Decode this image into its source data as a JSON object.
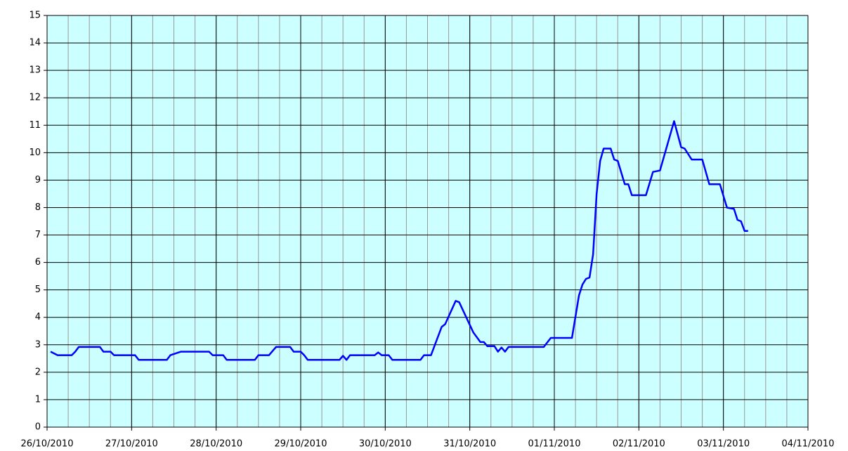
{
  "chart_data": {
    "type": "line",
    "x": [
      "2010-10-26T01:00",
      "2010-10-26T03:00",
      "2010-10-26T06:00",
      "2010-10-26T07:00",
      "2010-10-26T08:00",
      "2010-10-26T09:00",
      "2010-10-26T15:00",
      "2010-10-26T16:00",
      "2010-10-26T18:00",
      "2010-10-26T19:00",
      "2010-10-27T01:00",
      "2010-10-27T02:00",
      "2010-10-27T10:00",
      "2010-10-27T11:00",
      "2010-10-27T14:00",
      "2010-10-27T22:00",
      "2010-10-27T23:00",
      "2010-10-28T02:00",
      "2010-10-28T03:00",
      "2010-10-28T11:00",
      "2010-10-28T12:00",
      "2010-10-28T15:00",
      "2010-10-28T17:00",
      "2010-10-28T21:00",
      "2010-10-28T22:00",
      "2010-10-29T00:00",
      "2010-10-29T01:00",
      "2010-10-29T02:00",
      "2010-10-29T11:00",
      "2010-10-29T12:00",
      "2010-10-29T13:00",
      "2010-10-29T14:00",
      "2010-10-29T21:00",
      "2010-10-29T22:00",
      "2010-10-29T23:00",
      "2010-10-30T01:00",
      "2010-10-30T02:00",
      "2010-10-30T10:00",
      "2010-10-30T11:00",
      "2010-10-30T13:00",
      "2010-10-30T16:00",
      "2010-10-30T17:00",
      "2010-10-30T20:00",
      "2010-10-30T21:00",
      "2010-10-31T01:00",
      "2010-10-31T03:00",
      "2010-10-31T04:00",
      "2010-10-31T05:00",
      "2010-10-31T07:00",
      "2010-10-31T08:00",
      "2010-10-31T09:00",
      "2010-10-31T10:00",
      "2010-10-31T11:00",
      "2010-10-31T21:00",
      "2010-10-31T23:00",
      "2010-11-01T05:00",
      "2010-11-01T07:00",
      "2010-11-01T08:00",
      "2010-11-01T09:00",
      "2010-11-01T10:00",
      "2010-11-01T11:00",
      "2010-11-01T12:00",
      "2010-11-01T13:00",
      "2010-11-01T14:00",
      "2010-11-01T16:00",
      "2010-11-01T17:00",
      "2010-11-01T18:00",
      "2010-11-01T20:00",
      "2010-11-01T21:00",
      "2010-11-01T22:00",
      "2010-11-02T02:00",
      "2010-11-02T04:00",
      "2010-11-02T06:00",
      "2010-11-02T10:00",
      "2010-11-02T12:00",
      "2010-11-02T13:00",
      "2010-11-02T15:00",
      "2010-11-02T18:00",
      "2010-11-02T19:00",
      "2010-11-02T20:00",
      "2010-11-02T23:00",
      "2010-11-03T01:00",
      "2010-11-03T03:00",
      "2010-11-03T04:00",
      "2010-11-03T05:00",
      "2010-11-03T06:00",
      "2010-11-03T07:00"
    ],
    "series": [
      {
        "color": "#0000ff",
        "values": [
          2.75,
          2.62,
          2.62,
          2.62,
          2.75,
          2.92,
          2.92,
          2.75,
          2.75,
          2.62,
          2.62,
          2.45,
          2.45,
          2.62,
          2.75,
          2.75,
          2.62,
          2.62,
          2.45,
          2.45,
          2.62,
          2.62,
          2.92,
          2.92,
          2.75,
          2.75,
          2.62,
          2.45,
          2.45,
          2.6,
          2.45,
          2.62,
          2.62,
          2.72,
          2.62,
          2.62,
          2.45,
          2.45,
          2.62,
          2.62,
          3.65,
          3.75,
          4.6,
          4.55,
          3.45,
          3.1,
          3.1,
          2.95,
          2.95,
          2.75,
          2.9,
          2.75,
          2.92,
          2.92,
          3.25,
          3.25,
          4.8,
          5.2,
          5.4,
          5.45,
          6.3,
          8.5,
          9.7,
          10.15,
          10.15,
          9.75,
          9.7,
          8.85,
          8.85,
          8.45,
          8.45,
          9.3,
          9.35,
          11.15,
          10.2,
          10.15,
          9.75,
          9.75,
          9.3,
          8.85,
          8.85,
          8.0,
          7.95,
          7.55,
          7.5,
          7.15,
          7.15
        ]
      }
    ],
    "xlim": [
      "2010-10-26T00:00",
      "2010-11-04T00:00"
    ],
    "xticks": [
      {
        "value": "2010-10-26T00:00",
        "label": "26/10/2010"
      },
      {
        "value": "2010-10-27T00:00",
        "label": "27/10/2010"
      },
      {
        "value": "2010-10-28T00:00",
        "label": "28/10/2010"
      },
      {
        "value": "2010-10-29T00:00",
        "label": "29/10/2010"
      },
      {
        "value": "2010-10-30T00:00",
        "label": "30/10/2010"
      },
      {
        "value": "2010-10-31T00:00",
        "label": "31/10/2010"
      },
      {
        "value": "2010-11-01T00:00",
        "label": "01/11/2010"
      },
      {
        "value": "2010-11-02T00:00",
        "label": "02/11/2010"
      },
      {
        "value": "2010-11-03T00:00",
        "label": "03/11/2010"
      },
      {
        "value": "2010-11-04T00:00",
        "label": "04/11/2010"
      }
    ],
    "ylim": [
      0,
      15
    ],
    "yticks": [
      0,
      1,
      2,
      3,
      4,
      5,
      6,
      7,
      8,
      9,
      10,
      11,
      12,
      13,
      14,
      15
    ],
    "grid": true,
    "background": "#ccffff"
  }
}
